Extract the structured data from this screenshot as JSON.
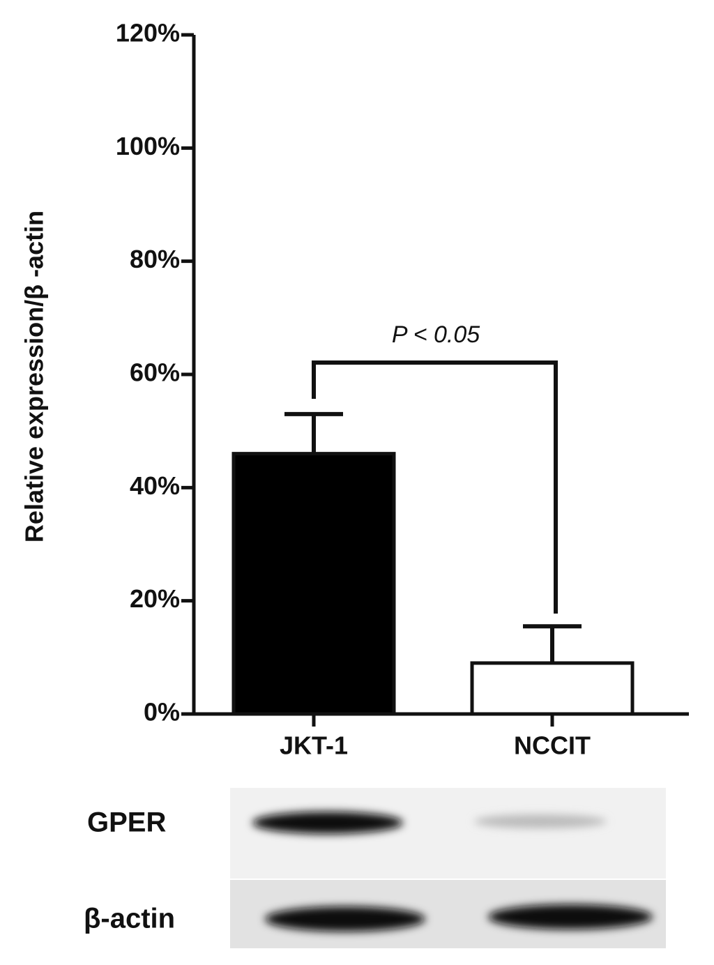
{
  "chart_data": {
    "type": "bar",
    "ylabel": "Relative expression/β -actin",
    "categories": [
      "JKT-1",
      "NCCIT"
    ],
    "values": [
      46,
      9
    ],
    "errors": [
      7,
      6.5
    ],
    "colors": [
      "#000000",
      "#ffffff"
    ],
    "annotation": "P < 0.05",
    "ylim": [
      0,
      120
    ],
    "yticks": [
      {
        "value": 0,
        "label": "0%"
      },
      {
        "value": 20,
        "label": "20%"
      },
      {
        "value": 40,
        "label": "40%"
      },
      {
        "value": 60,
        "label": "60%"
      },
      {
        "value": 80,
        "label": "80%"
      },
      {
        "value": 100,
        "label": "100%"
      },
      {
        "value": 120,
        "label": "120%"
      }
    ]
  },
  "blot": {
    "rows": [
      "GPER",
      "β-actin"
    ]
  }
}
